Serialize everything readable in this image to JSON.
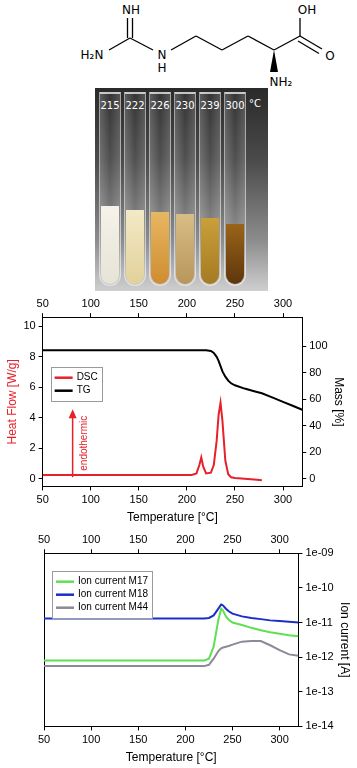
{
  "structure": {
    "labels": [
      "NH",
      "H₂N",
      "N",
      "H",
      "OH",
      "O",
      "NH₂"
    ]
  },
  "photo": {
    "labels": [
      215,
      222,
      226,
      230,
      239,
      300
    ],
    "unit": "°C"
  },
  "chart_data": [
    {
      "type": "line",
      "x_label": "Temperature [°C]",
      "y_label": "Heat Flow [W/g]",
      "y2_label": "Mass [%]",
      "xlim": [
        50,
        320
      ],
      "xticks": [
        50,
        100,
        150,
        200,
        250,
        300
      ],
      "ylim": [
        -0.5,
        10.6
      ],
      "yticks": [
        0,
        2,
        4,
        6,
        8,
        10
      ],
      "y2lim": [
        -6,
        122
      ],
      "y2ticks": [
        0,
        20,
        40,
        60,
        80,
        100
      ],
      "grid": false,
      "legend": "upper left",
      "annotations": [
        {
          "text": "endothermic",
          "color": "#e8202a"
        }
      ],
      "x": [
        50,
        100,
        150,
        200,
        205,
        210,
        213,
        215,
        217,
        220,
        225,
        228,
        231,
        233,
        235,
        237,
        240,
        243,
        246,
        250,
        260,
        270,
        278,
        290,
        300,
        310,
        320
      ],
      "series": [
        {
          "name": "DSC",
          "color": "#e8202a",
          "values": [
            0.25,
            0.25,
            0.25,
            0.25,
            0.25,
            0.35,
            0.9,
            1.4,
            0.8,
            0.35,
            0.4,
            0.9,
            2.5,
            4.2,
            5,
            3.8,
            1.2,
            0.3,
            0.1,
            0.05,
            0,
            -0.05,
            -0.1,
            null,
            null,
            null,
            null
          ]
        },
        {
          "name": "TG",
          "color": "#000000",
          "axis": "y2",
          "values": [
            97,
            97,
            97,
            97,
            97,
            97,
            97,
            97,
            97,
            97,
            96.5,
            95,
            92,
            89,
            85,
            81,
            77,
            74,
            72,
            70.5,
            68,
            66,
            64.5,
            61,
            58,
            55,
            52
          ]
        }
      ]
    },
    {
      "type": "line",
      "x_label": "Temperature [°C]",
      "y_label": "Ion current [A]",
      "log": "y",
      "xlim": [
        50,
        320
      ],
      "xticks": [
        50,
        100,
        150,
        200,
        250,
        300
      ],
      "ylim": [
        1e-14,
        1e-09
      ],
      "yticks": [
        {
          "value": 1e-14,
          "label": "1e-14"
        },
        {
          "value": 1e-13,
          "label": "1e-13"
        },
        {
          "value": 1e-12,
          "label": "1e-12"
        },
        {
          "value": 1e-11,
          "label": "1e-11"
        },
        {
          "value": 1e-10,
          "label": "1e-10"
        },
        {
          "value": 1e-09,
          "label": "1e-09"
        }
      ],
      "grid": false,
      "legend": "upper left",
      "x": [
        50,
        100,
        150,
        200,
        210,
        220,
        225,
        230,
        235,
        238,
        240,
        243,
        246,
        250,
        260,
        270,
        280,
        290,
        300,
        310,
        320
      ],
      "series": [
        {
          "name": "Ion current M17",
          "color": "#5fe052",
          "values": [
            8e-13,
            8e-13,
            8e-13,
            8e-13,
            8e-13,
            8e-13,
            9e-13,
            2e-12,
            1.2e-11,
            2.5e-11,
            2.2e-11,
            1.5e-11,
            1.2e-11,
            1e-11,
            8.5e-12,
            7e-12,
            6e-12,
            5.2e-12,
            4.7e-12,
            4.3e-12,
            4e-12
          ]
        },
        {
          "name": "Ion current M18",
          "color": "#1a2ec8",
          "values": [
            1.3e-11,
            1.3e-11,
            1.3e-11,
            1.3e-11,
            1.3e-11,
            1.3e-11,
            1.35e-11,
            1.6e-11,
            2.5e-11,
            3.3e-11,
            3.1e-11,
            2.5e-11,
            2.1e-11,
            1.8e-11,
            1.5e-11,
            1.35e-11,
            1.25e-11,
            1.15e-11,
            1.1e-11,
            1.05e-11,
            1e-11
          ]
        },
        {
          "name": "Ion current M44",
          "color": "#8a8a98",
          "values": [
            5.5e-13,
            5.5e-13,
            5.5e-13,
            5.5e-13,
            5.5e-13,
            5.5e-13,
            6e-13,
            9e-13,
            1.5e-12,
            1.8e-12,
            1.9e-12,
            2e-12,
            2.1e-12,
            2.3e-12,
            2.8e-12,
            2.9e-12,
            2.9e-12,
            2.2e-12,
            1.6e-12,
            1.2e-12,
            1.1e-12
          ]
        }
      ]
    }
  ]
}
